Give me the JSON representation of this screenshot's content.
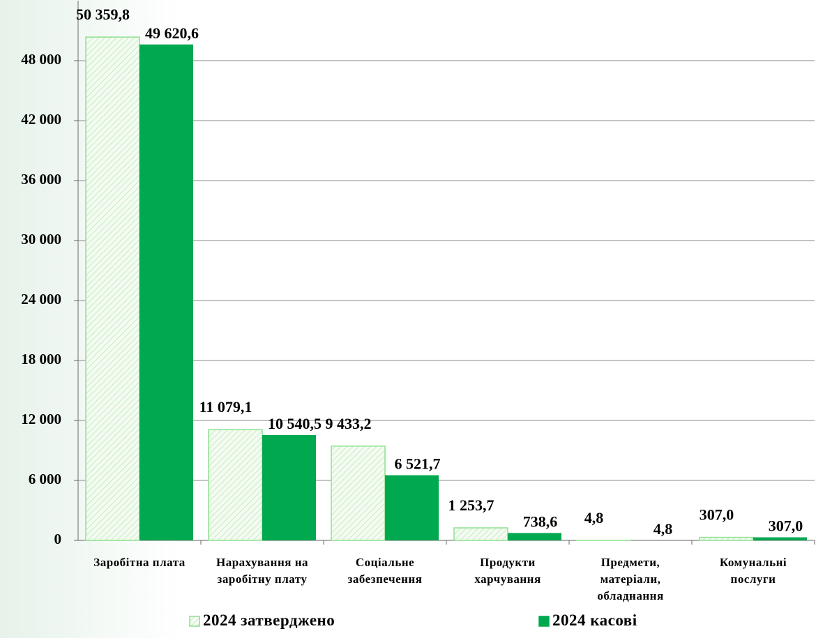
{
  "chart_data": {
    "type": "bar",
    "categories": [
      "Заробітна плата",
      "Нарахування на заробітну плату",
      "Соціальне забезпечення",
      "Продукти харчування",
      "Предмети, матеріали, обладнання",
      "Комунальні послуги"
    ],
    "series": [
      {
        "name": "2024 затверджено",
        "color": "#8ee08e",
        "pattern": "hatch",
        "values": [
          50359.8,
          11079.1,
          9433.2,
          1253.7,
          4.8,
          307.0
        ],
        "value_labels": [
          "50 359,8",
          "11 079,1",
          "9 433,2",
          "1 253,7",
          "4,8",
          "307,0"
        ]
      },
      {
        "name": "2024 касові",
        "color": "#00a84f",
        "values": [
          49620.6,
          10540.5,
          6521.7,
          738.6,
          4.8,
          307.0
        ],
        "value_labels": [
          "49 620,6",
          "10 540,5",
          "6 521,7",
          "738,6",
          "4,8",
          "307,0"
        ]
      }
    ],
    "ylim": [
      0,
      54000
    ],
    "yticks": [
      0,
      {
        "value": 6000,
        "label": "6 000"
      },
      {
        "value": 12000,
        "label": "12 000"
      },
      {
        "value": 18000,
        "label": "18 000"
      },
      {
        "value": 24000,
        "label": "24 000"
      },
      {
        "value": 30000,
        "label": "30 000"
      },
      {
        "value": 36000,
        "label": "36 000"
      },
      {
        "value": 42000,
        "label": "42 000"
      },
      {
        "value": 48000,
        "label": "48 000"
      }
    ],
    "grid": true,
    "legend": "bottom"
  }
}
